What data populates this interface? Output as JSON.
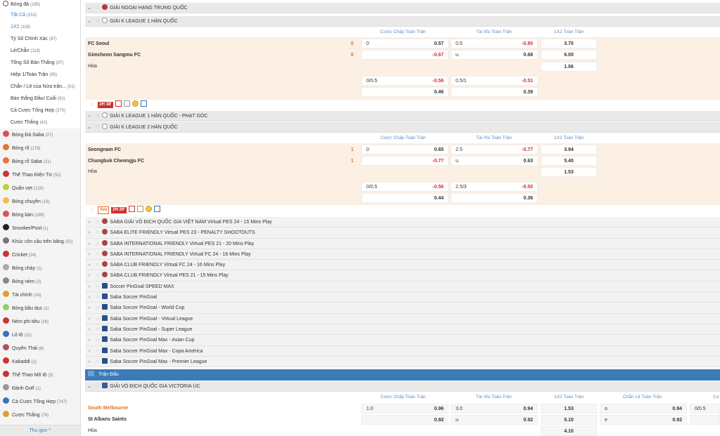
{
  "sidebar": {
    "football": {
      "label": "Bóng đá",
      "count": "(195)"
    },
    "sub_items": [
      {
        "label": "Tất Cả",
        "count": "(153)",
        "cls": "active"
      },
      {
        "label": "1X2",
        "count": "(118)",
        "cls": "blue"
      },
      {
        "label": "Tỷ Số Chính Xác",
        "count": "(97)",
        "cls": ""
      },
      {
        "label": "Lẻ/Chẵn",
        "count": "(119)",
        "cls": ""
      },
      {
        "label": "Tổng Số Bàn Thắng",
        "count": "(97)",
        "cls": ""
      },
      {
        "label": "Hiệp 1/Toàn Trận",
        "count": "(95)",
        "cls": ""
      },
      {
        "label": "Chẵn / Lẻ của Nửa trận...",
        "count": "(91)",
        "cls": ""
      },
      {
        "label": "Bàn thắng Đầu/ Cuối",
        "count": "(91)",
        "cls": ""
      },
      {
        "label": "Cá Cược Tổng Hợp",
        "count": "(370)",
        "cls": ""
      },
      {
        "label": "Cược Thắng",
        "count": "(42)",
        "cls": ""
      }
    ],
    "sports": [
      {
        "label": "Bóng Đá Saba",
        "count": "(27)",
        "color": "#d9534f"
      },
      {
        "label": "Bóng rổ",
        "count": "(178)",
        "color": "#e4763a"
      },
      {
        "label": "Bóng rổ Saba",
        "count": "(21)",
        "color": "#e4763a"
      },
      {
        "label": "Thể Thao Điện Tử",
        "count": "(52)",
        "color": "#c33"
      },
      {
        "label": "Quần vợt",
        "count": "(120)",
        "color": "#b8d432"
      },
      {
        "label": "Bóng chuyền",
        "count": "(16)",
        "color": "#f0c040"
      },
      {
        "label": "Bóng bàn",
        "count": "(189)",
        "color": "#d9534f"
      },
      {
        "label": "Snooker/Pool",
        "count": "(1)",
        "color": "#222"
      },
      {
        "label": "Khúc côn cầu trên băng",
        "count": "(52)",
        "color": "#777"
      },
      {
        "label": "Cricket",
        "count": "(24)",
        "color": "#c33"
      },
      {
        "label": "Bóng chày",
        "count": "(1)",
        "color": "#aaa"
      },
      {
        "label": "Bóng ném",
        "count": "(3)",
        "color": "#888"
      },
      {
        "label": "Tài chính",
        "count": "(16)",
        "color": "#e0a030"
      },
      {
        "label": "Bóng bầu dục",
        "count": "(1)",
        "color": "#9c6"
      },
      {
        "label": "Ném phi tiêu",
        "count": "(16)",
        "color": "#c33"
      },
      {
        "label": "Lô tô",
        "count": "(11)",
        "color": "#3a72b8"
      },
      {
        "label": "Quyền Thái",
        "count": "(8)",
        "color": "#a55"
      },
      {
        "label": "Kabaddi",
        "count": "(1)",
        "color": "#c33"
      },
      {
        "label": "Thể Thao Mô tô",
        "count": "(3)",
        "color": "#c33"
      },
      {
        "label": "Đánh Golf",
        "count": "(1)",
        "color": "#999"
      },
      {
        "label": "Cá Cược Tổng Hợp",
        "count": "(747)",
        "color": "#3a72b8"
      },
      {
        "label": "Cược Thắng",
        "count": "(76)",
        "color": "#e0a030"
      }
    ],
    "collapse_label": "Thu gọn ^"
  },
  "headers": {
    "handicap": "Cược Chấp Toàn Trận",
    "overunder": "Tài Xỉu Toàn Trận",
    "x12": "1X2 Toàn Trận",
    "oddeven": "Chẵn Lẻ Toàn Trận",
    "extra": "Cư"
  },
  "leagues": {
    "china": "GIẢI NGOẠI HẠNG TRUNG QUỐC",
    "kleague1": "GIẢI K LEAGUE 1 HÀN QUỐC",
    "kleague1_corner": "GIẢI K LEAGUE 1 HÀN QUỐC - PHẠT GÓC",
    "kleague2": "GIẢI K LEAGUE 2 HÀN QUỐC",
    "victoria": "GIẢI VÔ ĐỊCH QUỐC GIA VICTORIA ÚC"
  },
  "match1": {
    "home": "FC Seoul",
    "away": "Gimcheon Sangmu FC",
    "draw": "Hòa",
    "home_score": "0",
    "away_score": "0",
    "live_time": "2H 38'",
    "hdp1": {
      "line": "0",
      "home": "0.57",
      "away": "-0.67"
    },
    "ou1": {
      "line": "0.5",
      "over": "-0.80",
      "u": "u",
      "under": "0.68"
    },
    "x12": {
      "h": "3.70",
      "a": "6.00",
      "d": "1.56"
    },
    "hdp2": {
      "line": "0/0.5",
      "home": "-0.56",
      "away": "0.46"
    },
    "ou2": {
      "line": "0.5/1",
      "over": "-0.51",
      "under": "0.39"
    }
  },
  "match2": {
    "home": "Seongnam FC",
    "away": "Chungbuk Cheongju FC",
    "draw": "Hòa",
    "home_score": "1",
    "away_score": "1",
    "live_time": "2H 29'",
    "live_tag2": "live",
    "hdp1": {
      "line": "0",
      "home": "0.65",
      "away": "-0.77"
    },
    "ou1": {
      "line": "2.5",
      "over": "-0.77",
      "u": "u",
      "under": "0.63"
    },
    "x12": {
      "h": "3.94",
      "a": "5.40",
      "d": "1.53"
    },
    "hdp2": {
      "line": "0/0.5",
      "home": "-0.56",
      "away": "0.44"
    },
    "ou2": {
      "line": "2.5/3",
      "over": "-0.50",
      "under": "0.36"
    }
  },
  "events": [
    "SABA GIẢI VÔ ĐỊCH QUỐC GIA VIỆT NAM Virtual PES 24 - 15 Mins Play",
    "SABA ELITE FRIENDLY Virtual PES 23 - PENALTY SHOOTOUTS",
    "SABA INTERNATIONAL FRIENDLY Virtual PES 21 - 20 Mins Play",
    "SABA INTERNATIONAL FRIENDLY Virtual FC 24 - 16 Mins Play",
    "SABA CLUB FRIENDLY Virtual FC 24 - 16 Mins Play",
    "SABA CLUB FRIENDLY Virtual PES 21 - 15 Mins Play",
    "Soccer PinGoal SPEED MAX",
    "Saba Soccer PinGoal",
    "Saba Soccer PinGoal - World Cup",
    "Saba Soccer PinGoal - Virtual League",
    "Saba Soccer PinGoal - Super League",
    "Saba Soccer PinGoal Max - Asian Cup",
    "Saba Soccer PinGoal Max - Copa América",
    "Saba Soccer PinGoal Max - Premier League"
  ],
  "section_label": "Trận Đấu",
  "match3": {
    "home": "South Melbourne",
    "away": "St Albans Saints",
    "draw": "Hòa",
    "hdp": {
      "line": "1.0",
      "home": "0.96",
      "away": "0.92"
    },
    "ou": {
      "line": "3.0",
      "over": "0.94",
      "u": "u",
      "under": "0.92"
    },
    "x12": {
      "h": "1.53",
      "a": "5.10",
      "d": "4.10"
    },
    "oe": {
      "o": "o",
      "odd": "0.94",
      "e": "e",
      "even": "0.92"
    },
    "extra_line": "0/0.5"
  }
}
